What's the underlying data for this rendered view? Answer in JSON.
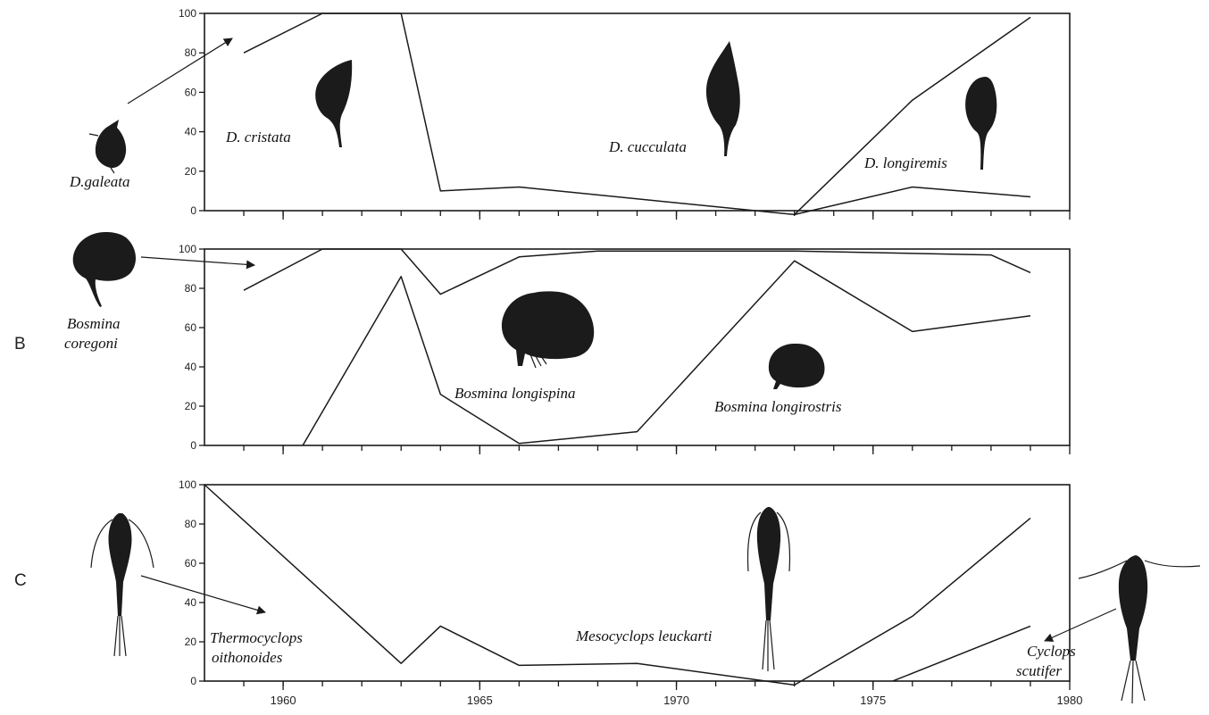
{
  "chart_data": [
    {
      "type": "line",
      "panel_label": "",
      "xlim": [
        1958,
        1980
      ],
      "ylim": [
        0,
        100
      ],
      "yticks": [
        0,
        20,
        40,
        60,
        80,
        100
      ],
      "xtick_labels": [],
      "series": [
        {
          "x": [
            1959,
            1961,
            1963,
            1964,
            1966,
            1973,
            1976,
            1979
          ],
          "y": [
            80,
            100,
            100,
            10,
            12,
            -2,
            12,
            7
          ]
        },
        {
          "x": [
            1973,
            1976,
            1979
          ],
          "y": [
            -2,
            56,
            98
          ]
        }
      ],
      "annotations": [
        "D.galeata",
        "D. cristata",
        "D. cucculata",
        "D. longiremis"
      ]
    },
    {
      "type": "line",
      "panel_label": "B",
      "xlim": [
        1958,
        1980
      ],
      "ylim": [
        0,
        100
      ],
      "yticks": [
        0,
        20,
        40,
        60,
        80,
        100
      ],
      "xtick_labels": [],
      "series": [
        {
          "x": [
            1959,
            1961,
            1963,
            1964,
            1966,
            1968,
            1973,
            1978,
            1979
          ],
          "y": [
            79,
            100,
            100,
            77,
            96,
            99,
            99,
            97,
            88
          ]
        },
        {
          "x": [
            1960.5,
            1963,
            1964,
            1966,
            1969,
            1973,
            1976,
            1979
          ],
          "y": [
            0,
            86,
            26,
            1,
            7,
            94,
            58,
            66
          ]
        }
      ],
      "annotations": [
        "Bosmina coregoni",
        "Bosmina longispina",
        "Bosmina longirostris"
      ]
    },
    {
      "type": "line",
      "panel_label": "C",
      "xlim": [
        1958,
        1980
      ],
      "ylim": [
        0,
        100
      ],
      "yticks": [
        0,
        20,
        40,
        60,
        80,
        100
      ],
      "xtick_labels": [
        "1960",
        "1965",
        "1970",
        "1975",
        "1980"
      ],
      "series": [
        {
          "x": [
            1958,
            1963,
            1964,
            1966,
            1969,
            1973,
            1976,
            1979
          ],
          "y": [
            100,
            9,
            28,
            8,
            9,
            -2,
            33,
            83
          ]
        },
        {
          "x": [
            1975.5,
            1979
          ],
          "y": [
            0,
            28
          ]
        }
      ],
      "annotations": [
        "Thermocyclops oithonoides",
        "Mesocyclops leuckarti",
        "Cyclops scutifer"
      ]
    }
  ],
  "labels": {
    "d_galeata": "D.galeata",
    "d_cristata": "D. cristata",
    "d_cucculata": "D. cucculata",
    "d_longiremis": "D. longiremis",
    "bosmina_coregoni_1": "Bosmina",
    "bosmina_coregoni_2": "coregoni",
    "bosmina_longispina": "Bosmina longispina",
    "bosmina_longirostris": "Bosmina longirostris",
    "thermocyclops_1": "Thermocyclops",
    "thermocyclops_2": "oithonoides",
    "mesocyclops": "Mesocyclops leuckarti",
    "cyclops_1": "Cyclops",
    "cyclops_2": "scutifer"
  },
  "colors": {
    "ink": "#1a1a1a",
    "background": "#ffffff"
  }
}
